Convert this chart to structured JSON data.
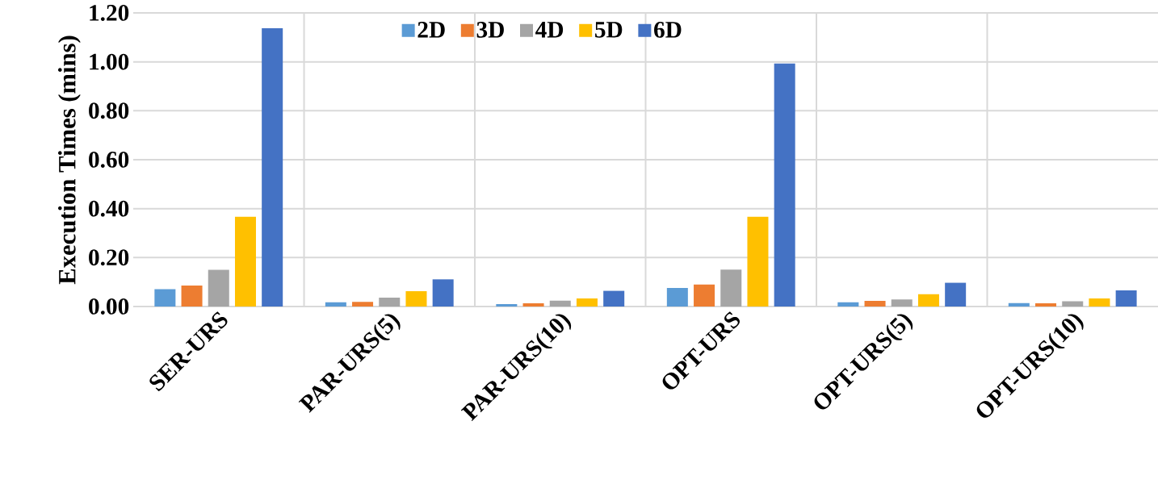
{
  "chart_data": {
    "type": "bar",
    "ylabel": "Execution Times (mins)",
    "categories": [
      "SER-URS",
      "PAR-URS(5)",
      "PAR-URS(10)",
      "OPT-URS",
      "OPT-URS(5)",
      "OPT-URS(10)"
    ],
    "series": [
      {
        "name": "2D",
        "color": "#5b9bd5",
        "values": [
          0.071,
          0.017,
          0.01,
          0.076,
          0.017,
          0.014
        ]
      },
      {
        "name": "3D",
        "color": "#ed7d31",
        "values": [
          0.086,
          0.019,
          0.013,
          0.09,
          0.023,
          0.013
        ]
      },
      {
        "name": "4D",
        "color": "#a5a5a5",
        "values": [
          0.15,
          0.036,
          0.024,
          0.151,
          0.029,
          0.021
        ]
      },
      {
        "name": "5D",
        "color": "#ffc000",
        "values": [
          0.367,
          0.063,
          0.033,
          0.367,
          0.05,
          0.033
        ]
      },
      {
        "name": "6D",
        "color": "#4472c4",
        "values": [
          1.137,
          0.111,
          0.064,
          0.993,
          0.097,
          0.066
        ]
      }
    ],
    "ylim": [
      0,
      1.2
    ],
    "yticks": [
      {
        "value": 0,
        "label": "0.00"
      },
      {
        "value": 0.2,
        "label": "0.20"
      },
      {
        "value": 0.4,
        "label": "0.40"
      },
      {
        "value": 0.6,
        "label": "0.60"
      },
      {
        "value": 0.8,
        "label": "0.80"
      },
      {
        "value": 1.0,
        "label": "1.00"
      },
      {
        "value": 1.2,
        "label": "1.20"
      }
    ],
    "grid": true,
    "legend": "top"
  }
}
